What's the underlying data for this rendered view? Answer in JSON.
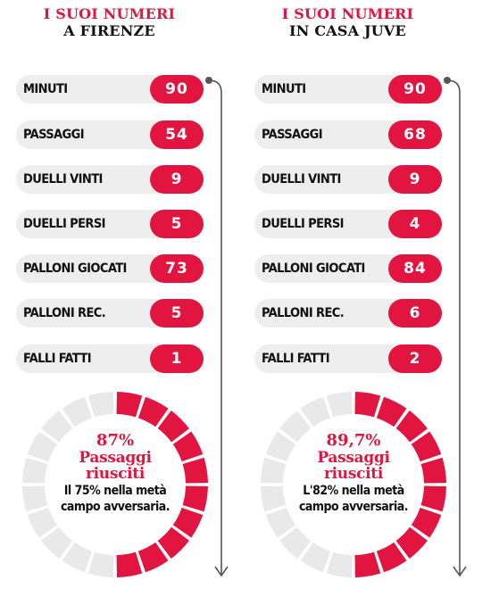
{
  "columns": [
    {
      "title_line1": "I SUOI NUMERI",
      "title_line2": "A FIRENZE",
      "stats": [
        {
          "label": "MINUTI",
          "value": "90"
        },
        {
          "label": "PASSAGGI",
          "value": "54"
        },
        {
          "label": "DUELLI VINTI",
          "value": "9"
        },
        {
          "label": "DUELLI PERSI",
          "value": "5"
        },
        {
          "label": "PALLONI GIOCATI",
          "value": "73"
        },
        {
          "label": "PALLONI REC.",
          "value": "5"
        },
        {
          "label": "FALLI FATTI",
          "value": "1"
        }
      ],
      "ring": {
        "percent_text": "87%",
        "title_line1": "Passaggi",
        "title_line2": "riusciti",
        "desc_line1": "Il 75% nella metà",
        "desc_line2": "campo avversaria.",
        "fraction_red": 0.5
      }
    },
    {
      "title_line1": "I SUOI NUMERI",
      "title_line2": "IN CASA JUVE",
      "stats": [
        {
          "label": "MINUTI",
          "value": "90"
        },
        {
          "label": "PASSAGGI",
          "value": "68"
        },
        {
          "label": "DUELLI VINTI",
          "value": "9"
        },
        {
          "label": "DUELLI PERSI",
          "value": "4"
        },
        {
          "label": "PALLONI GIOCATI",
          "value": "84"
        },
        {
          "label": "PALLONI REC.",
          "value": "6"
        },
        {
          "label": "FALLI FATTI",
          "value": "2"
        }
      ],
      "ring": {
        "percent_text": "89,7%",
        "title_line1": "Passaggi",
        "title_line2": "riusciti",
        "desc_line1": "L'82% nella metà",
        "desc_line2": "campo avversaria.",
        "fraction_red": 0.5
      }
    }
  ],
  "colors": {
    "accent": "#e1153f",
    "row_bg": "#eeeeee",
    "ring_grey": "#e9e9e9",
    "arrow": "#555555"
  }
}
